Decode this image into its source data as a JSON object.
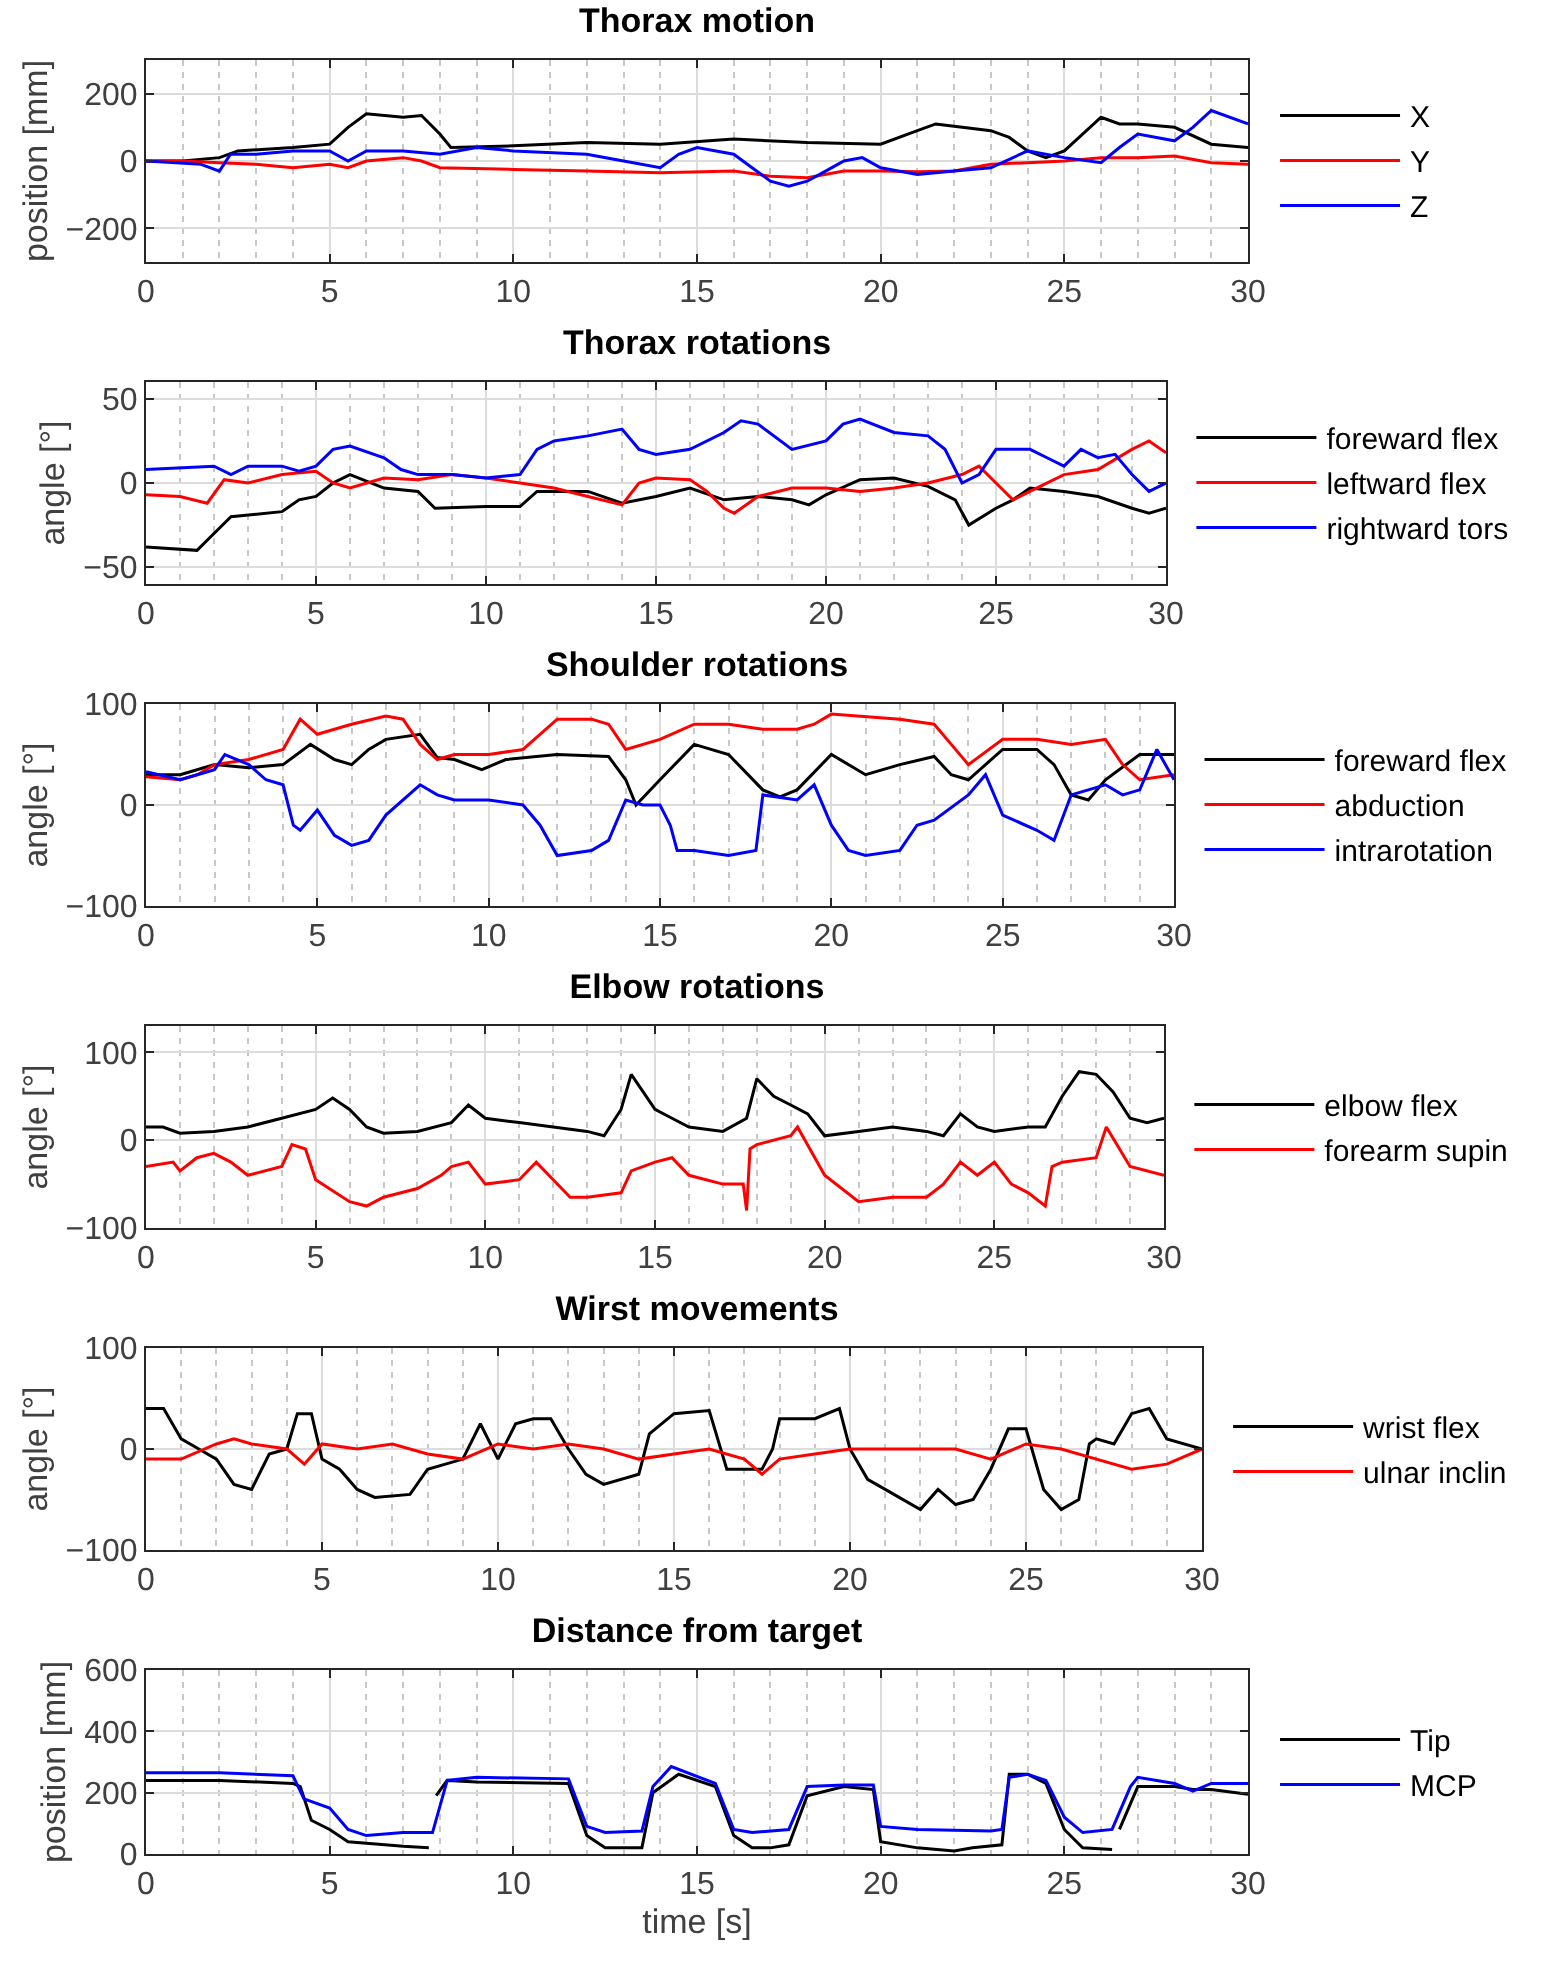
{
  "chart_data": [
    {
      "type": "line",
      "title": "Thorax motion",
      "ylabel": "position [mm]",
      "xlim": [
        0,
        30
      ],
      "xticks": [
        0,
        5,
        10,
        15,
        20,
        25,
        30
      ],
      "ylim": [
        -300,
        300
      ],
      "yticks": [
        -200,
        0,
        200
      ],
      "grid": true,
      "legend": "right",
      "series": [
        {
          "name": "X",
          "color": "#000000",
          "x": [
            0,
            1,
            2,
            2.5,
            4,
            5,
            5.5,
            6,
            7,
            7.5,
            8,
            8.3,
            10,
            12,
            14,
            16,
            18,
            20,
            21,
            21.5,
            23,
            23.5,
            24,
            24.5,
            25,
            26,
            26.5,
            27,
            28,
            29,
            30
          ],
          "values": [
            0,
            0,
            10,
            30,
            40,
            50,
            100,
            140,
            130,
            135,
            80,
            40,
            45,
            55,
            50,
            65,
            55,
            50,
            90,
            110,
            90,
            70,
            30,
            10,
            30,
            130,
            110,
            110,
            100,
            50,
            40
          ]
        },
        {
          "name": "Y",
          "color": "#ff0000",
          "x": [
            0,
            1,
            2,
            3,
            4,
            5,
            5.5,
            6,
            7,
            7.5,
            8,
            10,
            12,
            14,
            16,
            17,
            18,
            19,
            20,
            21,
            22,
            23,
            24,
            25,
            26,
            27,
            28,
            29,
            30
          ],
          "values": [
            0,
            0,
            -5,
            -10,
            -20,
            -10,
            -20,
            0,
            10,
            0,
            -20,
            -25,
            -30,
            -35,
            -30,
            -45,
            -50,
            -30,
            -30,
            -32,
            -30,
            -10,
            -5,
            0,
            10,
            10,
            15,
            -5,
            -10
          ]
        },
        {
          "name": "Z",
          "color": "#0000ff",
          "x": [
            0,
            1.5,
            2,
            2.3,
            3,
            4,
            5,
            5.5,
            6,
            7,
            8,
            9,
            10,
            12,
            13,
            14,
            14.5,
            15,
            16,
            16.5,
            17,
            17.5,
            18,
            18.5,
            19,
            19.5,
            20,
            21,
            22,
            23,
            24,
            25,
            26,
            26.5,
            27,
            28,
            28.5,
            29,
            30
          ],
          "values": [
            0,
            -10,
            -30,
            20,
            20,
            30,
            30,
            0,
            30,
            30,
            20,
            40,
            30,
            20,
            0,
            -20,
            20,
            40,
            20,
            -20,
            -60,
            -75,
            -60,
            -30,
            0,
            10,
            -20,
            -40,
            -30,
            -20,
            30,
            10,
            -5,
            40,
            80,
            60,
            100,
            150,
            110
          ]
        }
      ]
    },
    {
      "type": "line",
      "title": "Thorax rotations",
      "ylabel": "angle [°]",
      "xlim": [
        0,
        30
      ],
      "xticks": [
        0,
        5,
        10,
        15,
        20,
        25,
        30
      ],
      "ylim": [
        -60,
        60
      ],
      "yticks": [
        -50,
        0,
        50
      ],
      "grid": true,
      "legend": "right",
      "series": [
        {
          "name": "foreward flex",
          "color": "#000000",
          "x": [
            0,
            1.5,
            2,
            2.5,
            4,
            4.5,
            5,
            5.5,
            6,
            7,
            8,
            8.5,
            10,
            11,
            11.5,
            13,
            14,
            15,
            16,
            17,
            18,
            19,
            19.5,
            20,
            21,
            22,
            23,
            23.8,
            24.2,
            25,
            25.5,
            26,
            27,
            28,
            29,
            29.5,
            30
          ],
          "values": [
            -38,
            -40,
            -30,
            -20,
            -17,
            -10,
            -8,
            0,
            5,
            -3,
            -5,
            -15,
            -14,
            -14,
            -5,
            -5,
            -12,
            -8,
            -3,
            -10,
            -8,
            -10,
            -13,
            -7,
            2,
            3,
            -2,
            -10,
            -25,
            -15,
            -10,
            -3,
            -5,
            -8,
            -15,
            -18,
            -15
          ]
        },
        {
          "name": "leftward flex",
          "color": "#ff0000",
          "x": [
            0,
            1,
            1.8,
            2.3,
            3,
            4,
            5,
            5.5,
            6,
            7,
            8,
            9,
            10,
            11,
            12,
            13,
            14,
            14.5,
            15,
            16,
            16.5,
            17,
            17.3,
            18,
            19,
            20,
            21,
            22,
            23,
            24,
            24.5,
            25,
            25.5,
            26,
            27,
            28,
            29,
            29.5,
            30
          ],
          "values": [
            -7,
            -8,
            -12,
            2,
            0,
            5,
            7,
            0,
            -3,
            3,
            2,
            5,
            3,
            0,
            -3,
            -8,
            -13,
            0,
            3,
            2,
            -5,
            -15,
            -18,
            -8,
            -3,
            -3,
            -5,
            -3,
            0,
            5,
            10,
            0,
            -10,
            -5,
            5,
            8,
            20,
            25,
            18
          ]
        },
        {
          "name": "rightward tors",
          "color": "#0000ff",
          "x": [
            0,
            2,
            2.5,
            3,
            4,
            4.5,
            5,
            5.5,
            6,
            7,
            7.5,
            8,
            9,
            10,
            11,
            11.5,
            12,
            13,
            14,
            14.5,
            15,
            16,
            17,
            17.5,
            18,
            19,
            20,
            20.5,
            21,
            22,
            23,
            23.5,
            24,
            24.5,
            25,
            26,
            26.5,
            27,
            27.5,
            28,
            28.5,
            29,
            29.5,
            30
          ],
          "values": [
            8,
            10,
            5,
            10,
            10,
            7,
            10,
            20,
            22,
            15,
            8,
            5,
            5,
            3,
            5,
            20,
            25,
            28,
            32,
            20,
            17,
            20,
            30,
            37,
            35,
            20,
            25,
            35,
            38,
            30,
            28,
            20,
            0,
            5,
            20,
            20,
            15,
            10,
            20,
            15,
            17,
            5,
            -5,
            0
          ]
        }
      ]
    },
    {
      "type": "line",
      "title": "Shoulder rotations",
      "ylabel": "angle [°]",
      "xlim": [
        0,
        30
      ],
      "xticks": [
        0,
        5,
        10,
        15,
        20,
        25,
        30
      ],
      "ylim": [
        -100,
        100
      ],
      "yticks": [
        -100,
        0,
        100
      ],
      "grid": true,
      "legend": "right",
      "series": [
        {
          "name": "foreward flex",
          "color": "#000000",
          "x": [
            0,
            1,
            2,
            3,
            4,
            4.8,
            5.5,
            6,
            6.5,
            7,
            8,
            8.5,
            9,
            9.8,
            10.5,
            12,
            13.5,
            14,
            14.3,
            15,
            16,
            17,
            18,
            18.5,
            19,
            20,
            21,
            22,
            23,
            23.5,
            24,
            25,
            26,
            26.5,
            27,
            27.5,
            28,
            29,
            30
          ],
          "values": [
            30,
            30,
            40,
            37,
            40,
            60,
            45,
            40,
            55,
            65,
            70,
            47,
            45,
            35,
            45,
            50,
            48,
            25,
            0,
            25,
            60,
            50,
            15,
            8,
            15,
            50,
            30,
            40,
            48,
            30,
            25,
            55,
            55,
            40,
            10,
            5,
            25,
            50,
            50
          ]
        },
        {
          "name": "abduction",
          "color": "#ff0000",
          "x": [
            0,
            1,
            1.5,
            2,
            3,
            4,
            4.5,
            5,
            6,
            7,
            7.5,
            8,
            8.5,
            9,
            10,
            11,
            11.5,
            12,
            13,
            13.5,
            14,
            15,
            16,
            17,
            18,
            19,
            19.5,
            20,
            22,
            23,
            23.5,
            24,
            25,
            26,
            27,
            28,
            28.5,
            29,
            30
          ],
          "values": [
            28,
            25,
            30,
            40,
            45,
            55,
            85,
            70,
            80,
            88,
            85,
            60,
            45,
            50,
            50,
            55,
            70,
            85,
            85,
            80,
            55,
            65,
            80,
            80,
            75,
            75,
            80,
            90,
            85,
            80,
            60,
            40,
            65,
            65,
            60,
            65,
            40,
            25,
            30
          ]
        },
        {
          "name": "intrarotation",
          "color": "#0000ff",
          "x": [
            0,
            1,
            1.5,
            2,
            2.3,
            3,
            3.5,
            4,
            4.3,
            4.5,
            5,
            5.5,
            6,
            6.5,
            7,
            8,
            8.5,
            9,
            10,
            11,
            11.5,
            12,
            13,
            13.5,
            14,
            14.5,
            15,
            15.3,
            15.5,
            16,
            17,
            17.8,
            18,
            19,
            19.5,
            20,
            20.5,
            21,
            22,
            22.5,
            23,
            24,
            24.5,
            25,
            26,
            26.5,
            27,
            28,
            28.5,
            29,
            29.5,
            30
          ],
          "values": [
            33,
            25,
            30,
            35,
            50,
            40,
            25,
            20,
            -20,
            -25,
            -5,
            -30,
            -40,
            -35,
            -10,
            20,
            10,
            5,
            5,
            0,
            -20,
            -50,
            -45,
            -35,
            5,
            0,
            0,
            -20,
            -45,
            -45,
            -50,
            -45,
            10,
            5,
            20,
            -20,
            -45,
            -50,
            -45,
            -20,
            -15,
            10,
            30,
            -10,
            -25,
            -35,
            10,
            20,
            10,
            15,
            55,
            25
          ]
        }
      ]
    },
    {
      "type": "line",
      "title": "Elbow rotations",
      "ylabel": "angle [°]",
      "xlim": [
        0,
        30
      ],
      "xticks": [
        0,
        5,
        10,
        15,
        20,
        25,
        30
      ],
      "ylim": [
        -100,
        130
      ],
      "yticks": [
        -100,
        0,
        100
      ],
      "grid": true,
      "legend": "right",
      "series": [
        {
          "name": "elbow flex",
          "color": "#000000",
          "x": [
            0,
            0.5,
            1,
            2,
            3,
            4,
            5,
            5.5,
            6,
            6.5,
            7,
            8,
            9,
            9.5,
            10,
            11,
            12,
            13,
            13.5,
            14,
            14.3,
            15,
            15.5,
            16,
            17,
            17.7,
            18,
            18.5,
            19,
            19.5,
            20,
            21,
            22,
            23,
            23.5,
            24,
            24.5,
            25,
            26,
            26.5,
            27,
            27.5,
            28,
            28.5,
            29,
            29.5,
            30
          ],
          "values": [
            15,
            15,
            8,
            10,
            15,
            25,
            35,
            48,
            35,
            15,
            8,
            10,
            20,
            40,
            25,
            20,
            15,
            10,
            5,
            35,
            75,
            35,
            25,
            15,
            10,
            25,
            70,
            50,
            40,
            30,
            5,
            10,
            15,
            10,
            5,
            30,
            15,
            10,
            15,
            15,
            50,
            78,
            75,
            55,
            25,
            20,
            25
          ]
        },
        {
          "name": "forearm supin",
          "color": "#ff0000",
          "x": [
            0,
            0.8,
            1,
            1.5,
            2,
            2.5,
            3,
            4,
            4.3,
            4.7,
            5,
            6,
            6.5,
            7,
            8,
            8.7,
            9,
            9.5,
            10,
            11,
            11.5,
            12,
            12.5,
            13,
            14,
            14.3,
            15,
            15.5,
            16,
            17,
            17.6,
            17.7,
            17.8,
            18,
            19,
            19.2,
            20,
            21,
            22,
            23,
            23.5,
            24,
            24.5,
            25,
            25.5,
            26,
            26.5,
            26.7,
            27,
            28,
            28.3,
            29,
            30
          ],
          "values": [
            -30,
            -25,
            -35,
            -20,
            -15,
            -25,
            -40,
            -30,
            -5,
            -10,
            -45,
            -70,
            -75,
            -65,
            -55,
            -40,
            -30,
            -25,
            -50,
            -45,
            -25,
            -45,
            -65,
            -65,
            -60,
            -35,
            -25,
            -20,
            -40,
            -50,
            -50,
            -80,
            -10,
            -5,
            5,
            15,
            -40,
            -70,
            -65,
            -65,
            -50,
            -25,
            -40,
            -25,
            -50,
            -60,
            -75,
            -30,
            -25,
            -20,
            15,
            -30,
            -40
          ]
        }
      ]
    },
    {
      "type": "line",
      "title": "Wirst movements",
      "ylabel": "angle [°]",
      "xlim": [
        0,
        30
      ],
      "xticks": [
        0,
        5,
        10,
        15,
        20,
        25,
        30
      ],
      "ylim": [
        -100,
        100
      ],
      "yticks": [
        -100,
        0,
        100
      ],
      "grid": true,
      "legend": "right",
      "series": [
        {
          "name": "wrist flex",
          "color": "#000000",
          "x": [
            0,
            0.5,
            1,
            1.5,
            2,
            2.5,
            3,
            3.5,
            4,
            4.3,
            4.7,
            5,
            5.5,
            6,
            6.5,
            7.5,
            8,
            9,
            9.5,
            10,
            10.5,
            11,
            11.5,
            12,
            12.5,
            13,
            14,
            14.3,
            15,
            16,
            16.5,
            17,
            17.5,
            17.8,
            18,
            19,
            19.7,
            20,
            20.5,
            21,
            22,
            22.5,
            23,
            23.5,
            24,
            24.5,
            25,
            25.5,
            26,
            26.5,
            26.8,
            27,
            27.5,
            28,
            28.5,
            29,
            30
          ],
          "values": [
            40,
            40,
            10,
            0,
            -10,
            -35,
            -40,
            -5,
            0,
            35,
            35,
            -10,
            -20,
            -40,
            -48,
            -45,
            -20,
            -10,
            25,
            -10,
            25,
            30,
            30,
            0,
            -25,
            -35,
            -25,
            15,
            35,
            38,
            -20,
            -20,
            -20,
            0,
            30,
            30,
            40,
            0,
            -30,
            -40,
            -60,
            -40,
            -55,
            -50,
            -20,
            20,
            20,
            -40,
            -60,
            -50,
            5,
            10,
            5,
            35,
            40,
            10,
            0
          ]
        },
        {
          "name": "ulnar inclin",
          "color": "#ff0000",
          "x": [
            0,
            1,
            2,
            2.5,
            3,
            4,
            4.5,
            5,
            6,
            7,
            8,
            9,
            10,
            11,
            12,
            13,
            14,
            15,
            16,
            17,
            17.5,
            18,
            19,
            20,
            22,
            23,
            24,
            25,
            26,
            27,
            28,
            29,
            30
          ],
          "values": [
            -10,
            -10,
            5,
            10,
            5,
            0,
            -15,
            5,
            0,
            5,
            -5,
            -10,
            5,
            0,
            5,
            0,
            -10,
            -5,
            0,
            -10,
            -25,
            -10,
            -5,
            0,
            0,
            0,
            -10,
            5,
            0,
            -10,
            -20,
            -15,
            0
          ]
        }
      ]
    },
    {
      "type": "line",
      "title": "Distance from target",
      "xlabel": "time [s]",
      "ylabel": "position [mm]",
      "xlim": [
        0,
        30
      ],
      "xticks": [
        0,
        5,
        10,
        15,
        20,
        25,
        30
      ],
      "ylim": [
        0,
        600
      ],
      "yticks": [
        0,
        200,
        400,
        600
      ],
      "grid": true,
      "legend": "right",
      "series": [
        {
          "name": "Tip",
          "color": "#000000",
          "x": [
            0,
            2,
            4,
            4.2,
            4.5,
            5,
            5.5,
            6,
            7,
            7.7,
            7.8,
            7.9,
            8.2,
            9,
            11.5,
            12,
            12.5,
            13.5,
            13.8,
            14.5,
            15.5,
            16,
            16.5,
            17,
            17.5,
            18,
            19,
            19.8,
            20,
            21,
            22,
            22.5,
            23.3,
            23.5,
            24,
            24.5,
            25,
            25.5,
            26.3,
            26.4,
            26.5,
            27,
            28,
            28.5,
            29,
            30
          ],
          "values": [
            240,
            240,
            230,
            220,
            110,
            80,
            40,
            35,
            25,
            20,
            null,
            190,
            240,
            235,
            230,
            60,
            20,
            20,
            200,
            260,
            220,
            60,
            20,
            20,
            30,
            190,
            220,
            210,
            40,
            20,
            10,
            20,
            30,
            260,
            260,
            230,
            80,
            20,
            15,
            null,
            80,
            220,
            220,
            210,
            210,
            195
          ]
        },
        {
          "name": "MCP",
          "color": "#0000ff",
          "x": [
            0,
            2,
            4,
            4.3,
            5,
            5.5,
            6,
            7,
            7.8,
            8.2,
            9,
            11.5,
            12,
            12.5,
            13.5,
            13.8,
            14.3,
            15.5,
            16,
            16.5,
            17.5,
            18,
            19,
            19.8,
            20,
            21,
            23,
            23.3,
            23.5,
            24,
            24.5,
            25,
            25.5,
            26.3,
            26.8,
            27,
            28,
            28.5,
            29,
            30
          ],
          "values": [
            265,
            265,
            255,
            180,
            150,
            80,
            60,
            70,
            70,
            240,
            250,
            245,
            90,
            70,
            75,
            220,
            285,
            230,
            80,
            70,
            80,
            220,
            225,
            225,
            90,
            80,
            75,
            80,
            250,
            260,
            240,
            120,
            70,
            80,
            220,
            250,
            230,
            205,
            230,
            230
          ]
        }
      ]
    }
  ]
}
